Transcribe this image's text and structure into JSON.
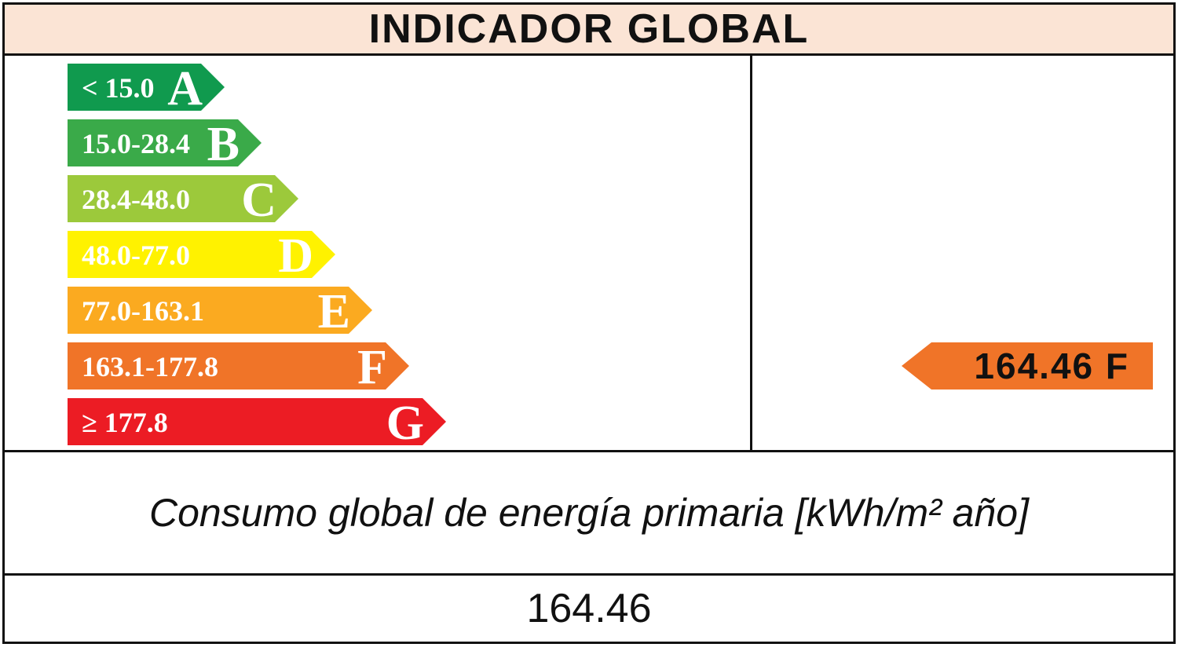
{
  "header": {
    "title": "INDICADOR GLOBAL"
  },
  "chart_data": {
    "type": "bar",
    "categories": [
      "A",
      "B",
      "C",
      "D",
      "E",
      "F",
      "G"
    ],
    "ranges": [
      "< 15.0",
      "15.0-28.4",
      "28.4-48.0",
      "48.0-77.0",
      "77.0-163.1",
      "163.1-177.8",
      "≥ 177.8"
    ],
    "colors": [
      "#109a4e",
      "#3aaa49",
      "#9cc93b",
      "#fff200",
      "#fbaa20",
      "#f07428",
      "#ec1c24"
    ],
    "result": {
      "value": "164.46",
      "letter": "F",
      "label": "164.46 F",
      "color": "#f07428"
    }
  },
  "caption": "Consumo global de energía primaria [kWh/m² año]",
  "value": "164.46"
}
